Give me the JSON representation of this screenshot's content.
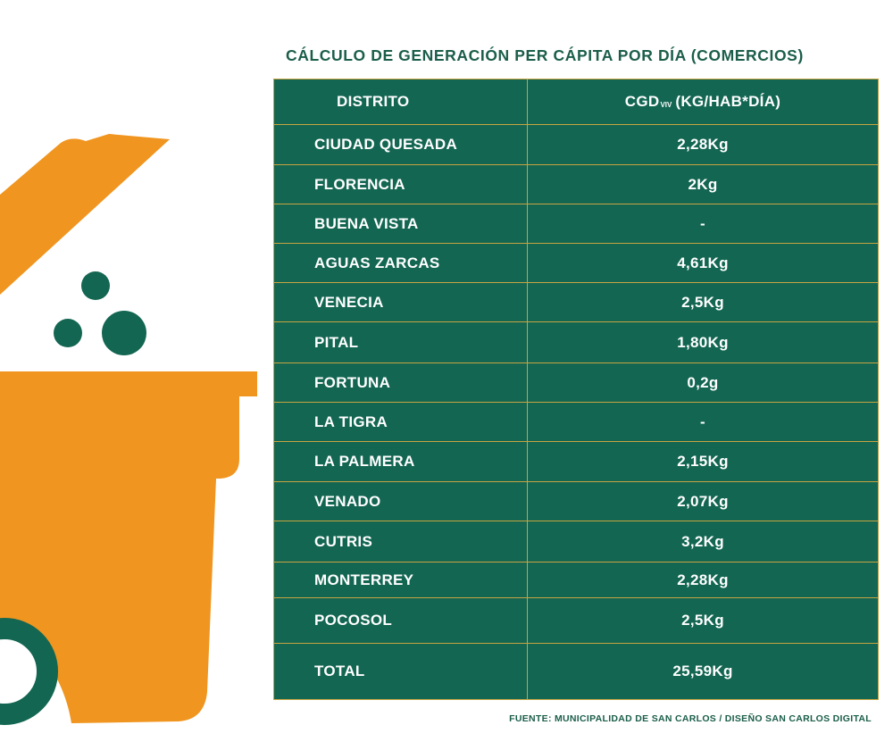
{
  "colors": {
    "table_bg": "#136652",
    "border": "#c7a441",
    "title": "#1b5e4a",
    "orange": "#f0951f",
    "green": "#136652",
    "text": "#ffffff"
  },
  "illustration": {
    "icon": "trash-bin-icon"
  },
  "title": "CÁLCULO DE GENERACIÓN PER CÁPITA POR DÍA (COMERCIOS)",
  "source": "FUENTE: MUNICIPALIDAD DE SAN CARLOS / DISEÑO SAN CARLOS DIGITAL",
  "chart_data": {
    "type": "table",
    "title": "CÁLCULO DE GENERACIÓN PER CÁPITA POR DÍA (COMERCIOS)",
    "columns": [
      {
        "main": "DISTRITO",
        "sub": "",
        "rest": ""
      },
      {
        "main": "CGD",
        "sub": "VIV",
        "rest": "(KG/HAB*DÍA)"
      }
    ],
    "rows": [
      [
        "CIUDAD QUESADA",
        "2,28Kg"
      ],
      [
        "FLORENCIA",
        "2Kg"
      ],
      [
        "BUENA VISTA",
        "-"
      ],
      [
        "AGUAS ZARCAS",
        "4,61Kg"
      ],
      [
        "VENECIA",
        "2,5Kg"
      ],
      [
        "PITAL",
        "1,80Kg"
      ],
      [
        "FORTUNA",
        "0,2g"
      ],
      [
        "LA TIGRA",
        "-"
      ],
      [
        "LA PALMERA",
        "2,15Kg"
      ],
      [
        "VENADO",
        "2,07Kg"
      ],
      [
        "CUTRIS",
        "3,2Kg"
      ],
      [
        "MONTERREY",
        "2,28Kg"
      ],
      [
        "POCOSOL",
        "2,5Kg"
      ],
      [
        "TOTAL",
        "25,59Kg"
      ]
    ]
  }
}
